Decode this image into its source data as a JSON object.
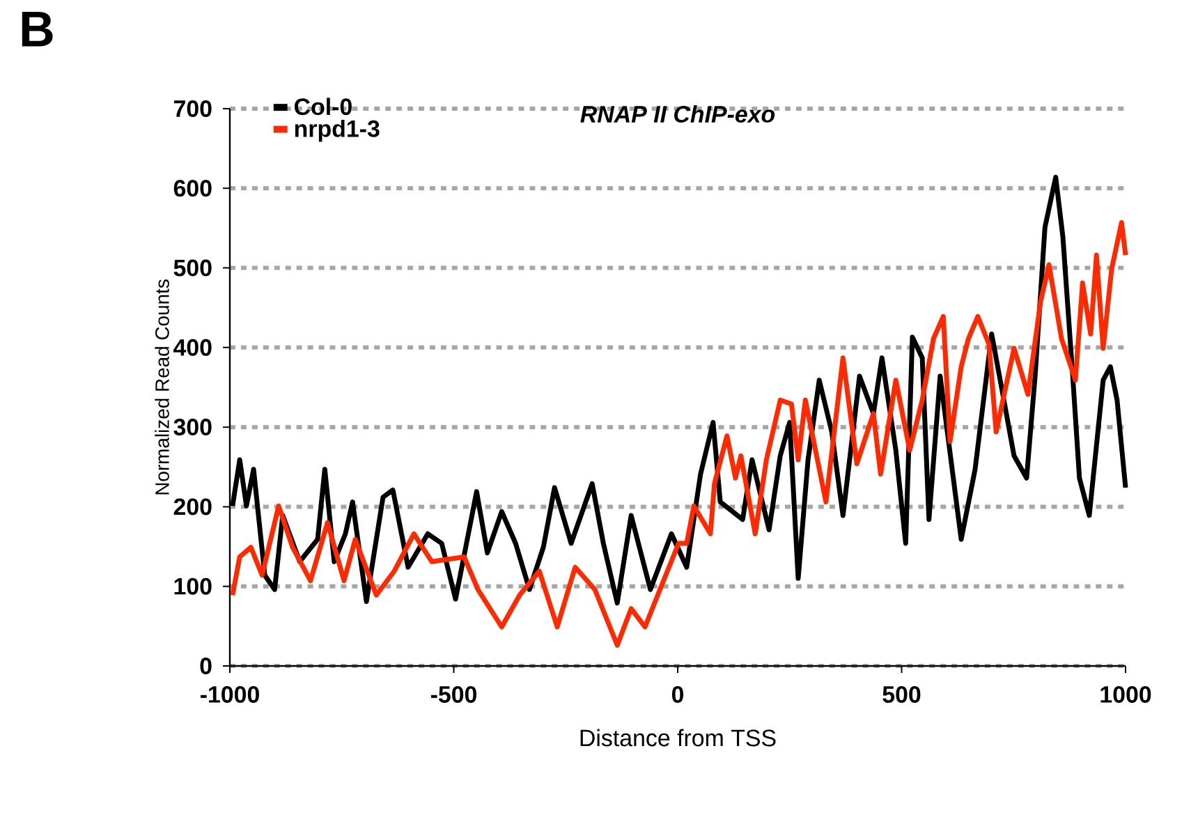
{
  "chart_data": {
    "type": "line",
    "title": "RNAP II ChIP-exo",
    "xlabel": "Distance from TSS",
    "ylabel": "Normalized Read Counts",
    "annotations": [
      "B"
    ],
    "xlim": [
      -1000,
      1000
    ],
    "xticks": [
      -1000,
      -500,
      0,
      500,
      1000
    ],
    "ylim": [
      0,
      700
    ],
    "yticks": [
      0,
      100,
      200,
      300,
      400,
      500,
      600,
      700
    ],
    "grid": "y",
    "legend": "top left",
    "marker": "none",
    "line_style": "solid",
    "series": [
      {
        "name": "Col-0",
        "color": "#000000",
        "x": [
          -994,
          -978,
          -963,
          -947,
          -922,
          -900,
          -882,
          -844,
          -804,
          -788,
          -767,
          -742,
          -726,
          -695,
          -658,
          -636,
          -602,
          -558,
          -527,
          -496,
          -449,
          -425,
          -393,
          -362,
          -331,
          -300,
          -275,
          -238,
          -191,
          -166,
          -135,
          -104,
          -61,
          -14,
          20,
          51,
          79,
          95,
          145,
          166,
          204,
          229,
          250,
          269,
          291,
          316,
          344,
          369,
          406,
          437,
          456,
          487,
          509,
          524,
          546,
          561,
          586,
          633,
          664,
          701,
          726,
          751,
          779,
          798,
          820,
          844,
          860,
          882,
          897,
          919,
          950,
          966,
          981,
          1000
        ],
        "values": [
          201,
          259,
          201,
          247,
          114,
          96,
          189,
          131,
          159,
          247,
          131,
          166,
          206,
          81,
          212,
          221,
          124,
          166,
          154,
          84,
          219,
          142,
          194,
          154,
          96,
          149,
          224,
          154,
          229,
          154,
          79,
          189,
          96,
          166,
          124,
          241,
          306,
          206,
          184,
          259,
          171,
          264,
          306,
          110,
          259,
          359,
          294,
          189,
          364,
          317,
          387,
          271,
          154,
          413,
          387,
          184,
          364,
          159,
          247,
          417,
          341,
          264,
          236,
          364,
          551,
          614,
          539,
          364,
          236,
          189,
          359,
          376,
          334,
          224
        ]
      },
      {
        "name": "nrpd1-3",
        "color": "#ff2a00",
        "x": [
          -994,
          -978,
          -953,
          -928,
          -891,
          -860,
          -820,
          -782,
          -745,
          -720,
          -673,
          -633,
          -589,
          -549,
          -477,
          -446,
          -393,
          -353,
          -309,
          -269,
          -229,
          -185,
          -135,
          -104,
          -73,
          -36,
          2,
          20,
          36,
          73,
          82,
          110,
          129,
          141,
          173,
          198,
          229,
          254,
          269,
          285,
          331,
          369,
          400,
          437,
          453,
          487,
          518,
          546,
          571,
          593,
          608,
          633,
          649,
          670,
          695,
          711,
          751,
          782,
          810,
          829,
          857,
          888,
          904,
          922,
          935,
          950,
          969,
          991,
          1000
        ],
        "values": [
          89,
          137,
          149,
          114,
          201,
          149,
          107,
          180,
          107,
          159,
          89,
          119,
          166,
          131,
          137,
          96,
          49,
          89,
          119,
          49,
          124,
          96,
          26,
          72,
          49,
          101,
          154,
          154,
          201,
          166,
          229,
          289,
          236,
          264,
          166,
          259,
          334,
          329,
          259,
          334,
          206,
          387,
          254,
          317,
          241,
          359,
          271,
          334,
          411,
          439,
          282,
          376,
          411,
          439,
          404,
          294,
          399,
          341,
          457,
          504,
          411,
          359,
          481,
          417,
          516,
          399,
          499,
          557,
          516
        ]
      }
    ]
  }
}
